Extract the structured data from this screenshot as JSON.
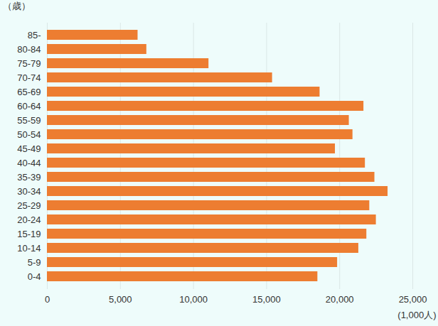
{
  "chart_data": {
    "type": "bar",
    "orientation": "horizontal",
    "y_label": "（歳）",
    "x_label": "(1,000人)",
    "categories": [
      "85-",
      "80-84",
      "75-79",
      "70-74",
      "65-69",
      "60-64",
      "55-59",
      "50-54",
      "45-49",
      "40-44",
      "35-39",
      "30-34",
      "25-29",
      "20-24",
      "15-19",
      "10-14",
      "5-9",
      "0-4"
    ],
    "values": [
      6200,
      6800,
      11050,
      15400,
      18650,
      21650,
      20650,
      20900,
      19700,
      21750,
      22400,
      23300,
      22050,
      22500,
      21850,
      21300,
      19850,
      18500
    ],
    "color": "#ed7d31",
    "xlim": [
      0,
      25000
    ],
    "xticks": [
      {
        "value": 0,
        "label": "0"
      },
      {
        "value": 5000,
        "label": "5,000"
      },
      {
        "value": 10000,
        "label": "10,000"
      },
      {
        "value": 15000,
        "label": "15,000"
      },
      {
        "value": 20000,
        "label": "20,000"
      },
      {
        "value": 25000,
        "label": "25,000"
      }
    ],
    "grid": true
  }
}
